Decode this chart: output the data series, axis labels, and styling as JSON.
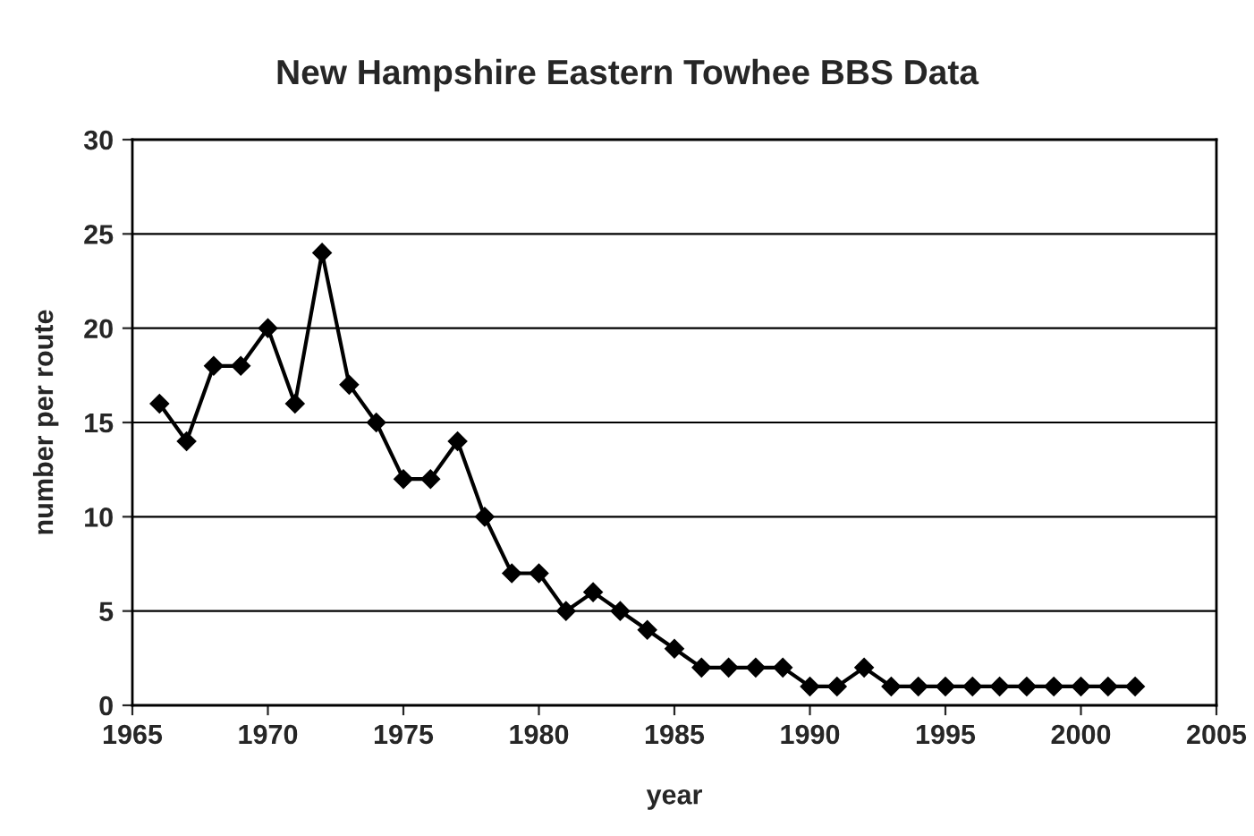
{
  "chart_data": {
    "type": "line",
    "title": "New Hampshire Eastern Towhee BBS Data",
    "xlabel": "year",
    "ylabel": "number per route",
    "x": [
      1966,
      1967,
      1968,
      1969,
      1970,
      1971,
      1972,
      1973,
      1974,
      1975,
      1976,
      1977,
      1978,
      1979,
      1980,
      1981,
      1982,
      1983,
      1984,
      1985,
      1986,
      1987,
      1988,
      1989,
      1990,
      1991,
      1992,
      1993,
      1994,
      1995,
      1996,
      1997,
      1998,
      1999,
      2000,
      2001,
      2002
    ],
    "series": [
      {
        "color": "#000000",
        "values": [
          16,
          14,
          18,
          18,
          20,
          16,
          24,
          17,
          15,
          12,
          12,
          14,
          10,
          7,
          7,
          5,
          6,
          5,
          4,
          3,
          2,
          2,
          2,
          2,
          1,
          1,
          2,
          1,
          1,
          1,
          1,
          1,
          1,
          1,
          1,
          1,
          1
        ]
      }
    ],
    "xlim": [
      1965,
      2005
    ],
    "xticks": [
      1965,
      1970,
      1975,
      1980,
      1985,
      1990,
      1995,
      2000,
      2005
    ],
    "ylim": [
      0,
      30
    ],
    "yticks": [
      0,
      5,
      10,
      15,
      20,
      25,
      30
    ],
    "grid": "y",
    "marker": "diamond",
    "line_style": "solid"
  }
}
